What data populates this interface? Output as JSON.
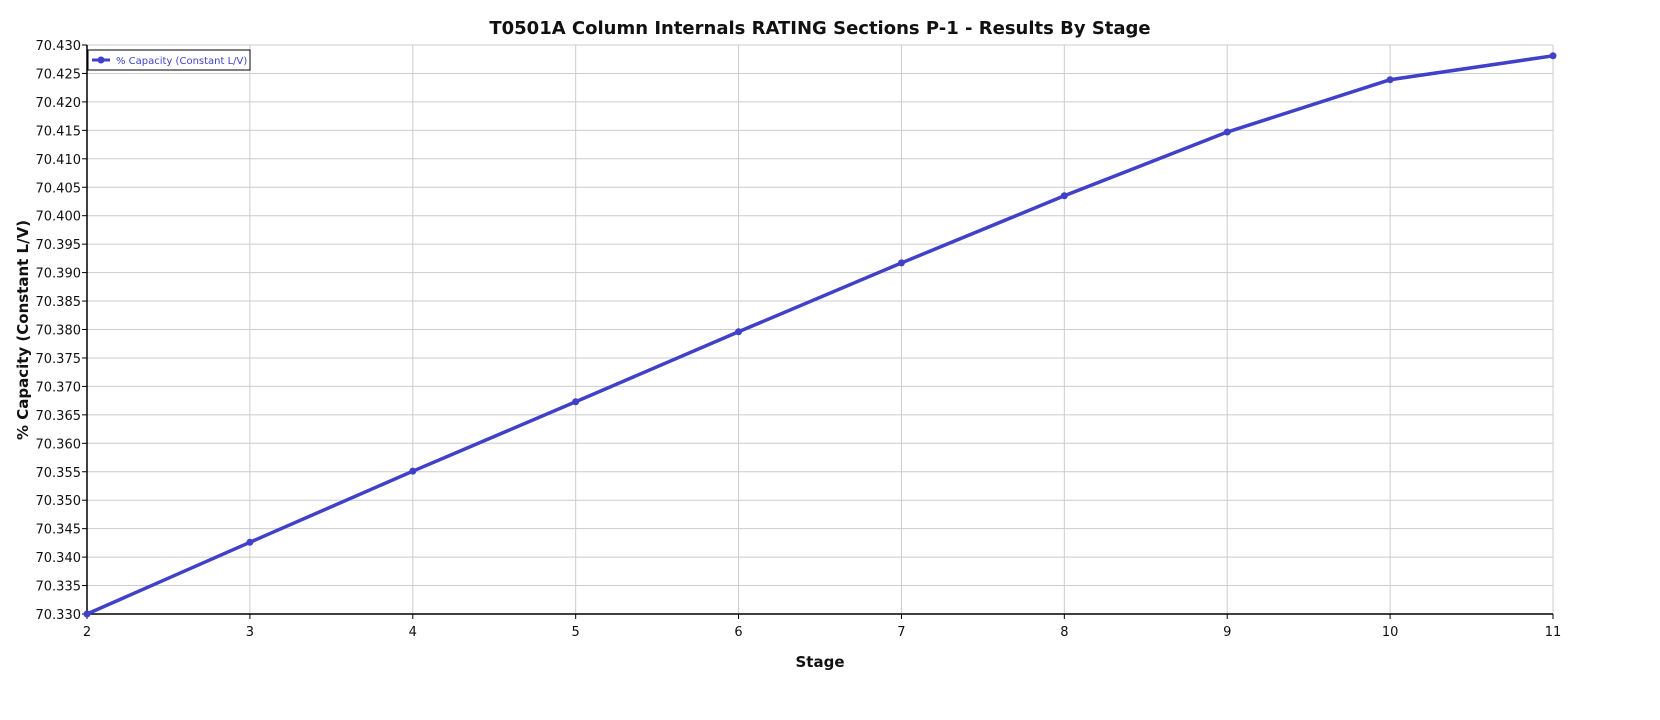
{
  "chart_data": {
    "type": "line",
    "title": "T0501A Column Internals RATING Sections P-1 - Results By Stage",
    "xlabel": "Stage",
    "ylabel": "% Capacity (Constant L/V)",
    "x": [
      2,
      3,
      4,
      5,
      6,
      7,
      8,
      9,
      10,
      11
    ],
    "xlim": [
      2,
      11
    ],
    "ylim": [
      70.33,
      70.43
    ],
    "ytick_step": 0.005,
    "grid": true,
    "legend_position": "top-left",
    "series": [
      {
        "name": "% Capacity (Constant L/V)",
        "color": "#4040c8",
        "values": [
          70.33,
          70.3426,
          70.3551,
          70.3673,
          70.3796,
          70.3917,
          70.4035,
          70.4147,
          70.4239,
          70.4281
        ]
      }
    ]
  }
}
